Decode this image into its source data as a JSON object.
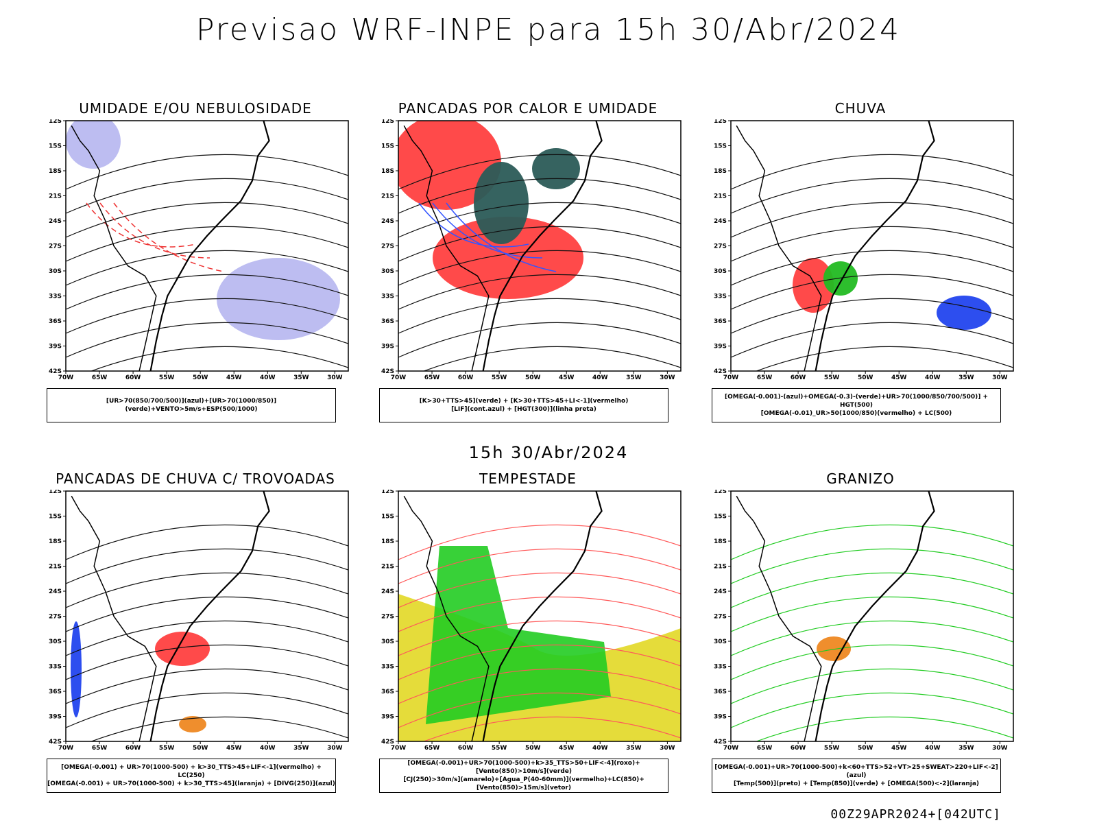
{
  "title": "Previsao WRF-INPE  para 15h 30/Abr/2024",
  "mid_date": "15h 30/Abr/2024",
  "footer": "00Z29APR2024+[042UTC]",
  "axes": {
    "lat_labels": [
      "12S",
      "15S",
      "18S",
      "21S",
      "24S",
      "27S",
      "30S",
      "33S",
      "36S",
      "39S",
      "42S"
    ],
    "lon_labels": [
      "70W",
      "65W",
      "60W",
      "55W",
      "50W",
      "45W",
      "40W",
      "35W",
      "30W"
    ]
  },
  "panels": [
    {
      "title": "UMIDADE E/OU NEBULOSIDADE",
      "legend": [
        "[UR>70(850/700/500)](azul)+[UR>70(1000/850)](verde)+VENTO>5m/s+ESP(500/1000)"
      ],
      "colors": {
        "fill": "#b9b9f0",
        "lines": "#22cc22",
        "dash": "#ee3333"
      }
    },
    {
      "title": "PANCADAS POR CALOR E UMIDADE",
      "legend": [
        "[K>30+TTS>45](verde) + [K>30+TTS>45+LI<-1](vermelho)",
        "[LIF](cont.azul) + [HGT(300)](linha preta)"
      ],
      "colors": {
        "fill": "#ff4040",
        "fill2": "#2b5b57",
        "lines": "#3355ff"
      }
    },
    {
      "title": "CHUVA",
      "legend": [
        "[OMEGA(-0.001)-(azul)+OMEGA(-0.3)-(verde)+UR>70(1000/850/700/500)] + HGT(500)",
        "[OMEGA(-0.01)_UR>50(1000/850)(vermelho) + LC(500)"
      ],
      "colors": {
        "fill": "#ff4040",
        "fill2": "#2244ee",
        "fill3": "#22bb22"
      }
    },
    {
      "title": "PANCADAS DE CHUVA C/ TROVOADAS",
      "legend": [
        "[OMEGA(-0.001) + UR>70(1000-500) + k>30_TTS>45+LIF<-1](vermelho) + LC(250)",
        "[OMEGA(-0.001) + UR>70(1000-500) + k>30_TTS>45](laranja) + [DIVG(250)](azul)"
      ],
      "colors": {
        "fill": "#ff4040",
        "fill2": "#2244ee",
        "fill3": "#ee8822"
      }
    },
    {
      "title": "TEMPESTADE",
      "legend": [
        "[OMEGA(-0.001)+UR>70(1000-500)+k>35_TTS>50+LIF<-4](roxo)+[Vento(850)>10m/s](verde)",
        "[CJ(250)>30m/s](amarelo)+[Agua_P(40-60mm)](vermelho)+LC(850)+[Vento(850)>15m/s](vetor)"
      ],
      "colors": {
        "fill": "#e5dc3a",
        "fill2": "#22cc22",
        "lines": "#ff5a5a"
      }
    },
    {
      "title": "GRANIZO",
      "legend": [
        "[OMEGA(-0.001)+UR>70(1000-500)+k<60+TTS>52+VT>25+SWEAT>220+LIF<-2](azul)",
        "[Temp(500)](preto) + [Temp(850)](verde) + [OMEGA(500)<-2](laranja)"
      ],
      "colors": {
        "lines": "#22cc22",
        "fill3": "#ee8822"
      }
    }
  ]
}
